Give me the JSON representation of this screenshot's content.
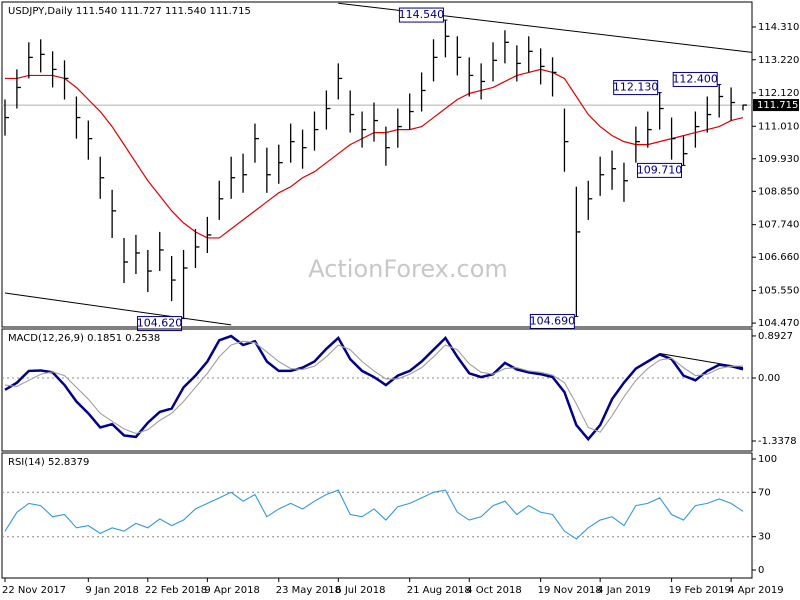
{
  "chart_data": [
    {
      "type": "ohlc",
      "title": "USDJPY,Daily 111.540 111.727 111.540 111.715",
      "watermark": "ActionForex.com",
      "categories": [
        "22 Nov 2017",
        null,
        null,
        null,
        null,
        null,
        null,
        "9 Jan 2018",
        null,
        null,
        null,
        null,
        "22 Feb 2018",
        null,
        null,
        null,
        null,
        "9 Apr 2018",
        null,
        null,
        null,
        null,
        null,
        "23 May 2018",
        null,
        null,
        null,
        null,
        "6 Jul 2018",
        null,
        null,
        null,
        null,
        null,
        "21 Aug 2018",
        null,
        null,
        null,
        null,
        "4 Oct 2018",
        null,
        null,
        null,
        null,
        null,
        "19 Nov 2018",
        null,
        null,
        null,
        null,
        "4 Jan 2019",
        null,
        null,
        null,
        null,
        null,
        "19 Feb 2019",
        null,
        null,
        null,
        null,
        "4 Apr 2019",
        null
      ],
      "high": [
        111.9,
        112.9,
        113.8,
        113.9,
        113.5,
        113.2,
        112.0,
        111.2,
        110.0,
        108.9,
        107.3,
        107.4,
        106.9,
        107.5,
        106.7,
        106.9,
        107.6,
        108.0,
        109.2,
        110.0,
        110.1,
        111.1,
        110.3,
        110.4,
        111.1,
        110.9,
        111.5,
        112.2,
        113.1,
        112.2,
        111.5,
        111.8,
        111.0,
        111.6,
        112.1,
        112.8,
        113.9,
        114.54,
        114.0,
        113.3,
        113.1,
        113.8,
        114.2,
        113.7,
        114.0,
        113.6,
        113.3,
        111.6,
        109.0,
        109.2,
        110.0,
        110.2,
        109.8,
        111.0,
        111.5,
        112.13,
        111.3,
        110.7,
        111.5,
        112.0,
        112.4,
        112.3,
        111.73
      ],
      "low": [
        110.7,
        111.6,
        112.6,
        112.8,
        112.3,
        111.9,
        110.6,
        109.9,
        108.6,
        107.3,
        105.8,
        106.1,
        105.5,
        106.2,
        105.2,
        104.62,
        106.3,
        106.8,
        107.9,
        108.6,
        108.8,
        109.8,
        108.8,
        109.1,
        109.8,
        109.6,
        110.2,
        110.9,
        111.9,
        110.8,
        110.3,
        110.5,
        109.7,
        110.3,
        110.9,
        111.5,
        112.5,
        113.3,
        112.7,
        112.0,
        111.9,
        112.5,
        113.1,
        112.5,
        112.8,
        112.4,
        112.0,
        109.5,
        104.69,
        107.9,
        108.7,
        108.9,
        108.5,
        109.8,
        110.3,
        110.9,
        109.9,
        109.71,
        110.3,
        110.8,
        111.3,
        111.2,
        111.54
      ],
      "close": [
        111.3,
        112.3,
        113.3,
        113.4,
        112.9,
        112.6,
        111.3,
        110.6,
        109.3,
        108.2,
        106.5,
        106.8,
        106.2,
        106.9,
        105.9,
        106.3,
        107.0,
        107.4,
        108.6,
        109.3,
        109.4,
        110.6,
        109.4,
        109.8,
        110.5,
        110.3,
        110.9,
        111.6,
        112.6,
        111.4,
        110.9,
        111.2,
        110.3,
        111.0,
        111.5,
        112.2,
        113.3,
        114.0,
        113.3,
        112.7,
        112.5,
        113.2,
        113.8,
        113.1,
        113.5,
        113.0,
        112.8,
        110.5,
        107.5,
        108.6,
        109.4,
        109.6,
        109.2,
        110.5,
        110.9,
        111.6,
        110.6,
        110.1,
        111.0,
        111.4,
        112.0,
        111.8,
        111.715
      ],
      "color": "#000000",
      "ma": {
        "color": "#e00000",
        "values": [
          112.6,
          112.6,
          112.7,
          112.7,
          112.7,
          112.6,
          112.3,
          111.9,
          111.5,
          111.0,
          110.4,
          109.8,
          109.2,
          108.7,
          108.2,
          107.8,
          107.5,
          107.3,
          107.3,
          107.6,
          107.9,
          108.2,
          108.5,
          108.8,
          109.0,
          109.3,
          109.5,
          109.8,
          110.1,
          110.4,
          110.6,
          110.8,
          110.8,
          110.9,
          110.9,
          111.0,
          111.3,
          111.6,
          111.9,
          112.1,
          112.2,
          112.3,
          112.5,
          112.7,
          112.8,
          112.9,
          112.8,
          112.6,
          112.0,
          111.4,
          111.0,
          110.7,
          110.5,
          110.4,
          110.4,
          110.5,
          110.6,
          110.7,
          110.8,
          110.9,
          111.0,
          111.2,
          111.3
        ]
      },
      "last_price_line": true,
      "annotations": [
        {
          "value": 114.54,
          "label": "114.540"
        },
        {
          "value": 104.62,
          "label": "104.620"
        },
        {
          "value": 104.69,
          "label": "104.690"
        },
        {
          "value": 112.13,
          "label": "112.130"
        },
        {
          "value": 112.4,
          "label": "112.400"
        },
        {
          "value": 109.71,
          "label": "109.710"
        }
      ],
      "trendlines": [
        {
          "x": [
            28,
            62
          ],
          "values": [
            115.1,
            113.5
          ],
          "extend_right": true
        },
        {
          "x": [
            0,
            19
          ],
          "values": [
            105.47,
            104.41
          ]
        }
      ],
      "ylim": [
        104.34,
        115.14
      ],
      "yticks": [
        {
          "value": 104.47,
          "label": "104.470"
        },
        {
          "value": 105.55,
          "label": "105.550"
        },
        {
          "value": 106.66,
          "label": "106.660"
        },
        {
          "value": 107.74,
          "label": "107.740"
        },
        {
          "value": 108.85,
          "label": "108.850"
        },
        {
          "value": 109.93,
          "label": "109.930"
        },
        {
          "value": 111.01,
          "label": "111.010"
        },
        {
          "value": 112.12,
          "label": "112.120"
        },
        {
          "value": 113.22,
          "label": "113.220"
        },
        {
          "value": 114.31,
          "label": "114.310"
        }
      ]
    },
    {
      "type": "line",
      "title": "MACD(12,26,9) 0.1851 0.2538",
      "series": [
        {
          "color": "#00008b",
          "values": [
            -0.25,
            -0.1,
            0.15,
            0.16,
            0.12,
            -0.15,
            -0.5,
            -0.75,
            -1.05,
            -0.98,
            -1.22,
            -1.25,
            -0.95,
            -0.72,
            -0.65,
            -0.2,
            0.05,
            0.35,
            0.8,
            0.89,
            0.7,
            0.78,
            0.35,
            0.15,
            0.15,
            0.22,
            0.35,
            0.62,
            0.85,
            0.4,
            0.15,
            0.02,
            -0.15,
            0.05,
            0.15,
            0.35,
            0.6,
            0.85,
            0.45,
            0.1,
            0.02,
            0.08,
            0.32,
            0.18,
            0.12,
            0.08,
            0.02,
            -0.3,
            -1.0,
            -1.3,
            -1.0,
            -0.45,
            -0.1,
            0.2,
            0.35,
            0.5,
            0.4,
            0.05,
            -0.05,
            0.15,
            0.28,
            0.25,
            0.1851
          ]
        },
        {
          "color": "#a0a0a0",
          "values": [
            -0.15,
            -0.18,
            -0.05,
            0.08,
            0.13,
            0.05,
            -0.2,
            -0.45,
            -0.75,
            -0.92,
            -1.08,
            -1.18,
            -1.1,
            -0.9,
            -0.75,
            -0.5,
            -0.2,
            0.1,
            0.45,
            0.7,
            0.78,
            0.75,
            0.55,
            0.35,
            0.2,
            0.18,
            0.25,
            0.45,
            0.7,
            0.6,
            0.35,
            0.15,
            -0.02,
            -0.02,
            0.08,
            0.22,
            0.45,
            0.7,
            0.6,
            0.3,
            0.12,
            0.08,
            0.2,
            0.22,
            0.15,
            0.12,
            0.06,
            -0.1,
            -0.55,
            -1.05,
            -1.15,
            -0.8,
            -0.4,
            -0.05,
            0.2,
            0.38,
            0.42,
            0.22,
            0.05,
            0.08,
            0.2,
            0.25,
            0.2538
          ]
        }
      ],
      "trendlines": [
        {
          "x": [
            55,
            62
          ],
          "values": [
            0.52,
            0.22
          ]
        }
      ],
      "grid": true,
      "ylim": [
        -1.55,
        1.04
      ],
      "yticks": [
        -1.3378,
        {
          "value": 0,
          "label": "0.00"
        },
        0.8927
      ]
    },
    {
      "type": "line",
      "title": "RSI(14) 52.8379",
      "series": [
        {
          "color": "#3399dd",
          "values": [
            35,
            52,
            60,
            58,
            48,
            50,
            38,
            40,
            33,
            38,
            35,
            42,
            38,
            46,
            40,
            45,
            55,
            60,
            65,
            70,
            62,
            68,
            48,
            55,
            60,
            55,
            62,
            68,
            72,
            50,
            48,
            55,
            45,
            57,
            60,
            65,
            70,
            72,
            52,
            45,
            48,
            58,
            62,
            50,
            58,
            52,
            50,
            35,
            28,
            38,
            45,
            48,
            40,
            58,
            60,
            65,
            50,
            45,
            58,
            60,
            64,
            60,
            52.8379
          ]
        }
      ],
      "grid": true,
      "ylim": [
        -7.2,
        105.4
      ],
      "yticks": [
        0,
        30,
        70,
        100
      ]
    }
  ]
}
